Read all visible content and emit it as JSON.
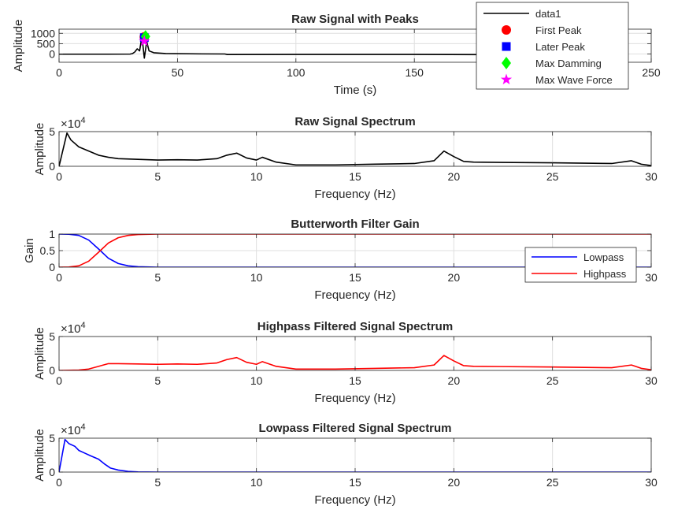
{
  "colors": {
    "black": "#000000",
    "red": "#ff0000",
    "blue": "#0000ff",
    "green": "#00ff00",
    "magenta": "#ff00ff",
    "grid": "#dfdfdf"
  },
  "chart_data": [
    {
      "type": "line",
      "title": "Raw Signal with Peaks",
      "xlabel": "Time (s)",
      "ylabel": "Amplitude",
      "xlim": [
        0,
        250
      ],
      "ylim": [
        -400,
        1200
      ],
      "xticks": [
        "0",
        "50",
        "100",
        "150",
        "200",
        "250"
      ],
      "yticks": [
        "0",
        "500",
        "1000"
      ],
      "grid": true,
      "legend_position": "top-right",
      "series": [
        {
          "name": "data1",
          "color": "#000000",
          "x": [
            0,
            20,
            30,
            31,
            32,
            33,
            34,
            35,
            36,
            37,
            38,
            40,
            45,
            60,
            70,
            71,
            100,
            150,
            180,
            200
          ],
          "y": [
            -10,
            -10,
            -5,
            20,
            100,
            250,
            150,
            850,
            -200,
            600,
            150,
            60,
            20,
            5,
            0,
            -25,
            -20,
            -20,
            -30,
            -20
          ]
        }
      ],
      "markers": [
        {
          "name": "First Peak",
          "shape": "circle",
          "color": "#ff0000",
          "x": 36,
          "y": 830
        },
        {
          "name": "Later Peak",
          "shape": "square",
          "color": "#0000ff",
          "x": 36,
          "y": 790
        },
        {
          "name": "Max Damming",
          "shape": "diamond",
          "color": "#00ff00",
          "x": 36.5,
          "y": 850
        },
        {
          "name": "Max Wave Force",
          "shape": "star",
          "color": "#ff00ff",
          "x": 36,
          "y": 620
        }
      ]
    },
    {
      "type": "line",
      "title": "Raw Signal Spectrum",
      "xlabel": "Frequency (Hz)",
      "ylabel": "Amplitude",
      "y_exponent": "4",
      "xlim": [
        0,
        30
      ],
      "ylim": [
        0,
        5
      ],
      "xticks": [
        "0",
        "5",
        "10",
        "15",
        "20",
        "25",
        "30"
      ],
      "yticks": [
        "0",
        "5"
      ],
      "grid": true,
      "series": [
        {
          "name": "",
          "color": "#000000",
          "x": [
            0,
            0.4,
            0.6,
            1,
            1.5,
            2,
            2.5,
            3,
            4,
            5,
            6,
            7,
            8,
            8.5,
            9,
            9.5,
            10,
            10.3,
            11,
            12,
            14,
            16,
            18,
            19,
            19.5,
            20,
            20.5,
            21,
            25,
            28,
            29,
            29.5,
            30
          ],
          "y": [
            0,
            4.8,
            3.8,
            2.8,
            2.2,
            1.6,
            1.3,
            1.1,
            1.0,
            0.9,
            0.95,
            0.9,
            1.1,
            1.6,
            1.9,
            1.2,
            0.9,
            1.3,
            0.6,
            0.2,
            0.2,
            0.3,
            0.4,
            0.8,
            2.2,
            1.4,
            0.7,
            0.6,
            0.5,
            0.4,
            0.8,
            0.3,
            0.1
          ]
        }
      ]
    },
    {
      "type": "line",
      "title": "Butterworth Filter Gain",
      "xlabel": "Frequency (Hz)",
      "ylabel": "Gain",
      "xlim": [
        0,
        30
      ],
      "ylim": [
        0,
        1
      ],
      "xticks": [
        "0",
        "5",
        "10",
        "15",
        "20",
        "25",
        "30"
      ],
      "yticks": [
        "0",
        "0.5",
        "1"
      ],
      "grid": true,
      "legend_position": "bottom-right",
      "series": [
        {
          "name": "Lowpass",
          "color": "#0000ff",
          "x": [
            0,
            0.5,
            1,
            1.5,
            2,
            2.5,
            3,
            3.5,
            4,
            5,
            30
          ],
          "y": [
            1.0,
            0.995,
            0.96,
            0.82,
            0.55,
            0.27,
            0.11,
            0.04,
            0.015,
            0.0,
            0.0
          ]
        },
        {
          "name": "Highpass",
          "color": "#ff0000",
          "x": [
            0,
            0.5,
            1,
            1.5,
            2,
            2.5,
            3,
            3.5,
            4,
            5,
            30
          ],
          "y": [
            0.0,
            0.005,
            0.04,
            0.18,
            0.45,
            0.73,
            0.89,
            0.96,
            0.985,
            1.0,
            1.0
          ]
        }
      ]
    },
    {
      "type": "line",
      "title": "Highpass Filtered Signal Spectrum",
      "xlabel": "Frequency (Hz)",
      "ylabel": "Amplitude",
      "y_exponent": "4",
      "xlim": [
        0,
        30
      ],
      "ylim": [
        0,
        5
      ],
      "xticks": [
        "0",
        "5",
        "10",
        "15",
        "20",
        "25",
        "30"
      ],
      "yticks": [
        "0",
        "5"
      ],
      "grid": true,
      "series": [
        {
          "name": "",
          "color": "#ff0000",
          "x": [
            0,
            1,
            1.5,
            2,
            2.5,
            3,
            4,
            5,
            6,
            7,
            8,
            8.5,
            9,
            9.5,
            10,
            10.3,
            11,
            12,
            14,
            16,
            18,
            19,
            19.5,
            20,
            20.5,
            21,
            25,
            28,
            29,
            29.5,
            30
          ],
          "y": [
            0,
            0.05,
            0.2,
            0.6,
            1.0,
            1.0,
            0.95,
            0.9,
            0.95,
            0.9,
            1.1,
            1.6,
            1.9,
            1.2,
            0.9,
            1.3,
            0.6,
            0.2,
            0.2,
            0.3,
            0.4,
            0.8,
            2.2,
            1.4,
            0.7,
            0.6,
            0.5,
            0.4,
            0.8,
            0.3,
            0.1
          ]
        }
      ]
    },
    {
      "type": "line",
      "title": "Lowpass Filtered Signal Spectrum",
      "xlabel": "Frequency (Hz)",
      "ylabel": "Amplitude",
      "y_exponent": "4",
      "xlim": [
        0,
        30
      ],
      "ylim": [
        0,
        5
      ],
      "xticks": [
        "0",
        "5",
        "10",
        "15",
        "20",
        "25",
        "30"
      ],
      "yticks": [
        "0",
        "5"
      ],
      "grid": true,
      "series": [
        {
          "name": "",
          "color": "#0000ff",
          "x": [
            0,
            0.3,
            0.5,
            0.8,
            1,
            1.3,
            1.6,
            2,
            2.3,
            2.6,
            3,
            3.5,
            4,
            5,
            30
          ],
          "y": [
            0,
            4.8,
            4.2,
            3.8,
            3.2,
            2.8,
            2.4,
            1.9,
            1.2,
            0.6,
            0.3,
            0.1,
            0.03,
            0,
            0
          ]
        }
      ]
    }
  ]
}
